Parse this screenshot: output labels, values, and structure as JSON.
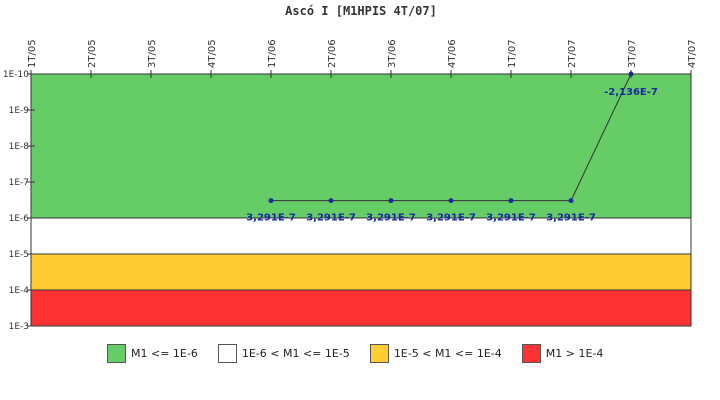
{
  "chart_data": {
    "type": "line",
    "title": "Ascó I [M1HPIS 4T/07]",
    "categories": [
      "1T/05",
      "2T/05",
      "3T/05",
      "4T/05",
      "1T/06",
      "2T/06",
      "3T/06",
      "4T/06",
      "1T/07",
      "2T/07",
      "3T/07",
      "4T/07"
    ],
    "y_scale": "log-reversed",
    "y_ticks": [
      "1E-10",
      "1E-9",
      "1E-8",
      "1E-7",
      "1E-6",
      "1E-5",
      "1E-4",
      "1E-3"
    ],
    "bands": [
      {
        "label": "M1 <= 1E-6",
        "from": "1E-10",
        "to": "1E-6",
        "color": "#66cc66"
      },
      {
        "label": "1E-6 < M1 <= 1E-5",
        "from": "1E-6",
        "to": "1E-5",
        "color": "#ffffff"
      },
      {
        "label": "1E-5 < M1 <= 1E-4",
        "from": "1E-5",
        "to": "1E-4",
        "color": "#ffcc33"
      },
      {
        "label": "M1 > 1E-4",
        "from": "1E-4",
        "to": "1E-3",
        "color": "#ff3333"
      }
    ],
    "series": [
      {
        "x": [
          "1T/06",
          "2T/06",
          "3T/06",
          "4T/06",
          "1T/07",
          "2T/07",
          "3T/07"
        ],
        "values": [
          3.291e-07,
          3.291e-07,
          3.291e-07,
          3.291e-07,
          3.291e-07,
          3.291e-07,
          -2.136e-07
        ],
        "labels": [
          "3,291E-7",
          "3,291E-7",
          "3,291E-7",
          "3,291E-7",
          "3,291E-7",
          "3,291E-7",
          "-2,136E-7"
        ],
        "color": "#1a2aa0"
      }
    ],
    "line_color": "#333333",
    "grid": false,
    "legend_position": "bottom"
  }
}
